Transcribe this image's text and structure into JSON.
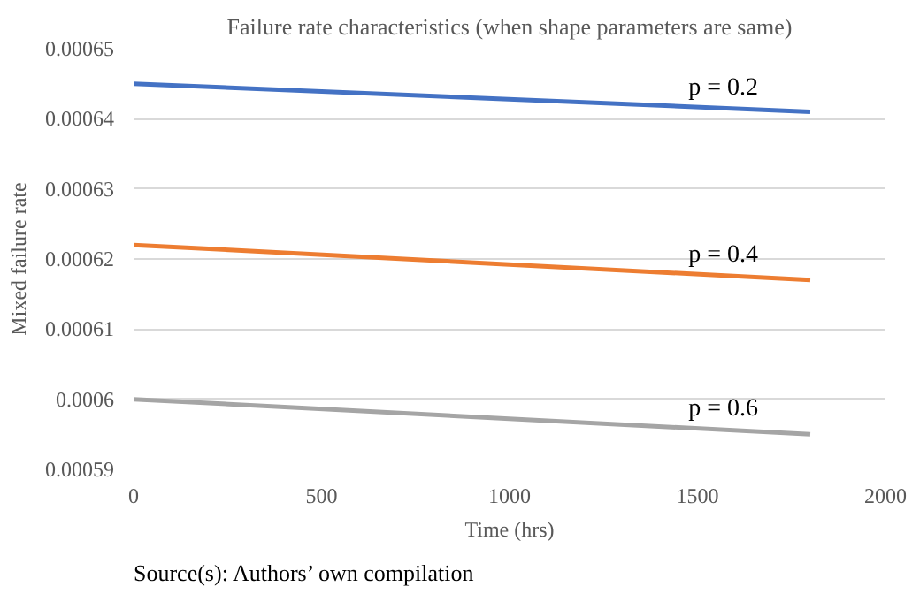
{
  "chart_data": {
    "type": "line",
    "title": "Failure rate characteristics (when shape parameters are same)",
    "xlabel": "Time (hrs)",
    "ylabel": "Mixed failure rate",
    "x": [
      0,
      1800
    ],
    "series": [
      {
        "name": "p = 0.2",
        "color": "#4472c4",
        "values": [
          0.000645,
          0.000641
        ]
      },
      {
        "name": "p = 0.4",
        "color": "#ed7d31",
        "values": [
          0.000622,
          0.000617
        ]
      },
      {
        "name": "p = 0.6",
        "color": "#a5a5a5",
        "values": [
          0.0006,
          0.000595
        ]
      }
    ],
    "xlim": [
      0,
      2000
    ],
    "xticks": [
      0,
      500,
      1000,
      1500,
      2000
    ],
    "ylim": [
      0.00059,
      0.00065
    ],
    "yticks": [
      0.00059,
      0.0006,
      0.00061,
      0.00062,
      0.00063,
      0.00064,
      0.00065
    ],
    "grid": "y",
    "legend": false,
    "marker": "none",
    "line_style": "solid",
    "annotations": [
      "Source(s): Authors’ own compilation"
    ]
  }
}
